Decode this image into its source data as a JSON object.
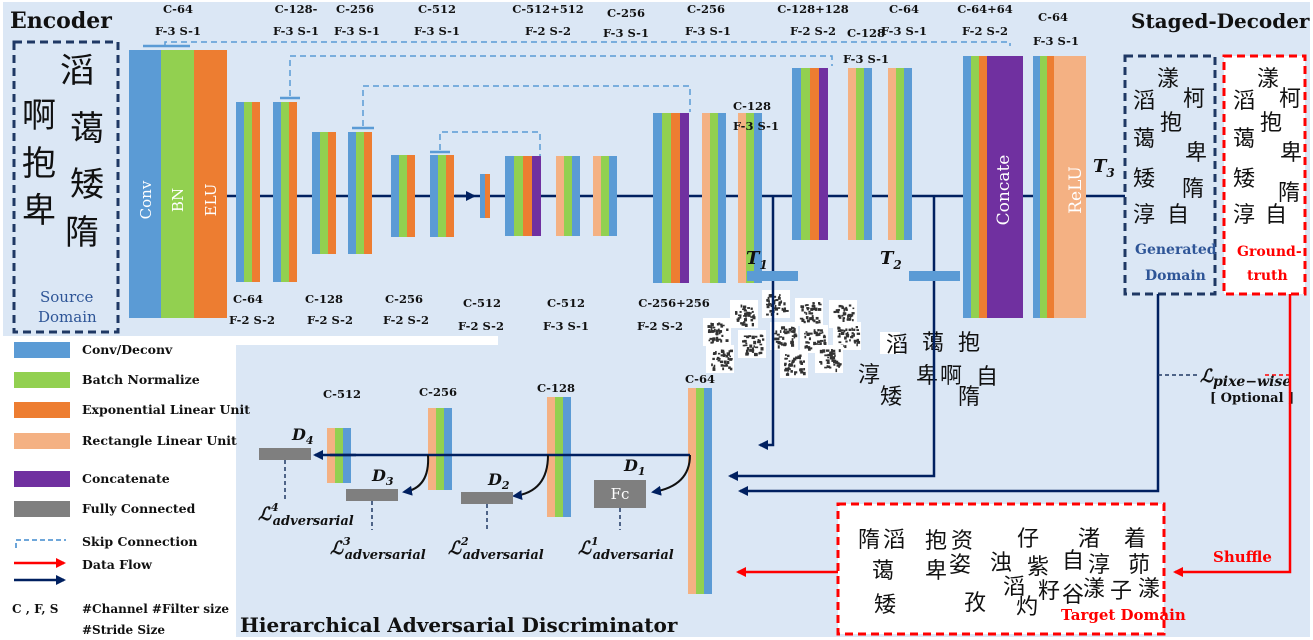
{
  "sections": {
    "encoder": "Encoder",
    "decoder": "Staged-Decoder",
    "discriminator": "Hierarchical Adversarial Discriminator"
  },
  "blocks": {
    "conv": "Conv",
    "bn": "BN",
    "elu": "ELU",
    "concate": "Concate",
    "relu": "ReLU",
    "fc": "Fc"
  },
  "encoder_labels_top": [
    {
      "c": "C-64",
      "f": "F-3 S-1"
    },
    {
      "c": "C-128-",
      "f": "F-3 S-1"
    },
    {
      "c": "C-256",
      "f": "F-3 S-1"
    },
    {
      "c": "C-512",
      "f": "F-3 S-1"
    }
  ],
  "encoder_labels_bottom": [
    {
      "c": "C-64",
      "f": "F-2 S-2"
    },
    {
      "c": "C-128",
      "f": "F-2 S-2"
    },
    {
      "c": "C-256",
      "f": "F-2 S-2"
    },
    {
      "c": "C-512",
      "f": "F-2 S-2"
    }
  ],
  "decoder_labels_top": [
    {
      "c": "C-512+512",
      "f": "F-2 S-2"
    },
    {
      "c": "C-256",
      "f": "F-3 S-1"
    },
    {
      "c": "C-256",
      "f": "F-3 S-1"
    },
    {
      "c": "C-128",
      "f": "F-3 S-1"
    },
    {
      "c": "C-128+128",
      "f": "F-2 S-2"
    },
    {
      "c": "C-128",
      "f": "F-3 S-1"
    },
    {
      "c": "C-64",
      "f": "F-3 S-1"
    },
    {
      "c": "C-64+64",
      "f": "F-2 S-2"
    },
    {
      "c": "C-64",
      "f": "F-3 S-1"
    }
  ],
  "decoder_labels_bottom": [
    {
      "c": "C-512",
      "f": "F-3 S-1"
    },
    {
      "c": "C-256+256",
      "f": "F-2 S-2"
    }
  ],
  "disc_labels": [
    "C-512",
    "C-256",
    "C-128",
    "C-64"
  ],
  "stage_outputs": {
    "t1": "T",
    "t1_sub": "1",
    "t2": "T",
    "t2_sub": "2",
    "t3": "T",
    "t3_sub": "3"
  },
  "d_labels": [
    {
      "d": "D",
      "sub": "4"
    },
    {
      "d": "D",
      "sub": "3"
    },
    {
      "d": "D",
      "sub": "2"
    },
    {
      "d": "D",
      "sub": "1"
    }
  ],
  "loss_labels": [
    {
      "l": "ℒ",
      "sup": "4",
      "sub": "adversarial"
    },
    {
      "l": "ℒ",
      "sup": "3",
      "sub": "adversarial"
    },
    {
      "l": "ℒ",
      "sup": "2",
      "sub": "adversarial"
    },
    {
      "l": "ℒ",
      "sup": "1",
      "sub": "adversarial"
    }
  ],
  "pixel_loss": {
    "l": "ℒ",
    "sub": "pixe−wise",
    "optional": "[ Optional ]"
  },
  "domains": {
    "source_l1": "Source",
    "source_l2": "Domain",
    "generated_l1": "Generated",
    "generated_l2": "Domain",
    "ground_l1": "Ground-",
    "ground_l2": "truth",
    "target": "Target Domain",
    "shuffle": "Shuffle"
  },
  "source_chars": [
    "滔",
    "啊",
    "蔼",
    "抱",
    "矮",
    "卑",
    "隋"
  ],
  "generated_chars": [
    "滔",
    "漾",
    "柯",
    "蔼",
    "抱",
    "卑",
    "矮",
    "隋",
    "淳",
    "自"
  ],
  "ground_chars": [
    "滔",
    "漾",
    "柯",
    "蔼",
    "抱",
    "卑",
    "矮",
    "隋",
    "淳",
    "自"
  ],
  "target_chars": [
    "隋",
    "滔",
    "抱",
    "资",
    "仔",
    "渚",
    "着",
    "蔼",
    "卑",
    "姿",
    "浊",
    "紫",
    "自",
    "淳",
    "茆",
    "滔",
    "矮",
    "孜",
    "灼",
    "籽",
    "谷",
    "漾",
    "子",
    "漾"
  ],
  "t2_chars": [
    "滔",
    "蔼",
    "抱",
    "淳",
    "矮",
    "卑",
    "啊",
    "自",
    "隋"
  ],
  "legend": [
    {
      "color": "#5b9bd5",
      "label": "Conv/Deconv"
    },
    {
      "color": "#92d050",
      "label": "Batch Normalize"
    },
    {
      "color": "#ed7d31",
      "label": "Exponential Linear Unit"
    },
    {
      "color": "#f4b183",
      "label": "Rectangle Linear Unit"
    },
    {
      "color": "#7030a0",
      "label": "Concatenate"
    },
    {
      "color": "#7f7f7f",
      "label": "Fully Connected"
    },
    {
      "color": "#5b9bd5",
      "label": "Skip Connection"
    },
    {
      "color": "#ff0000",
      "label": "Data Flow"
    },
    {
      "color": "#002060",
      "label": "Data Flow"
    }
  ],
  "legend_notes": {
    "key": "C , F, S",
    "vals": "#Channel  #Filter size",
    "vals2": "#Stride Size"
  },
  "colors": {
    "conv": "#5b9bd5",
    "bn": "#92d050",
    "elu": "#ed7d31",
    "relu": "#f4b183",
    "concat": "#7030a0",
    "fc": "#7f7f7f",
    "navy": "#002060",
    "red": "#ff0000",
    "panel": "#dbe7f5",
    "skip": "#5b9bd5"
  }
}
